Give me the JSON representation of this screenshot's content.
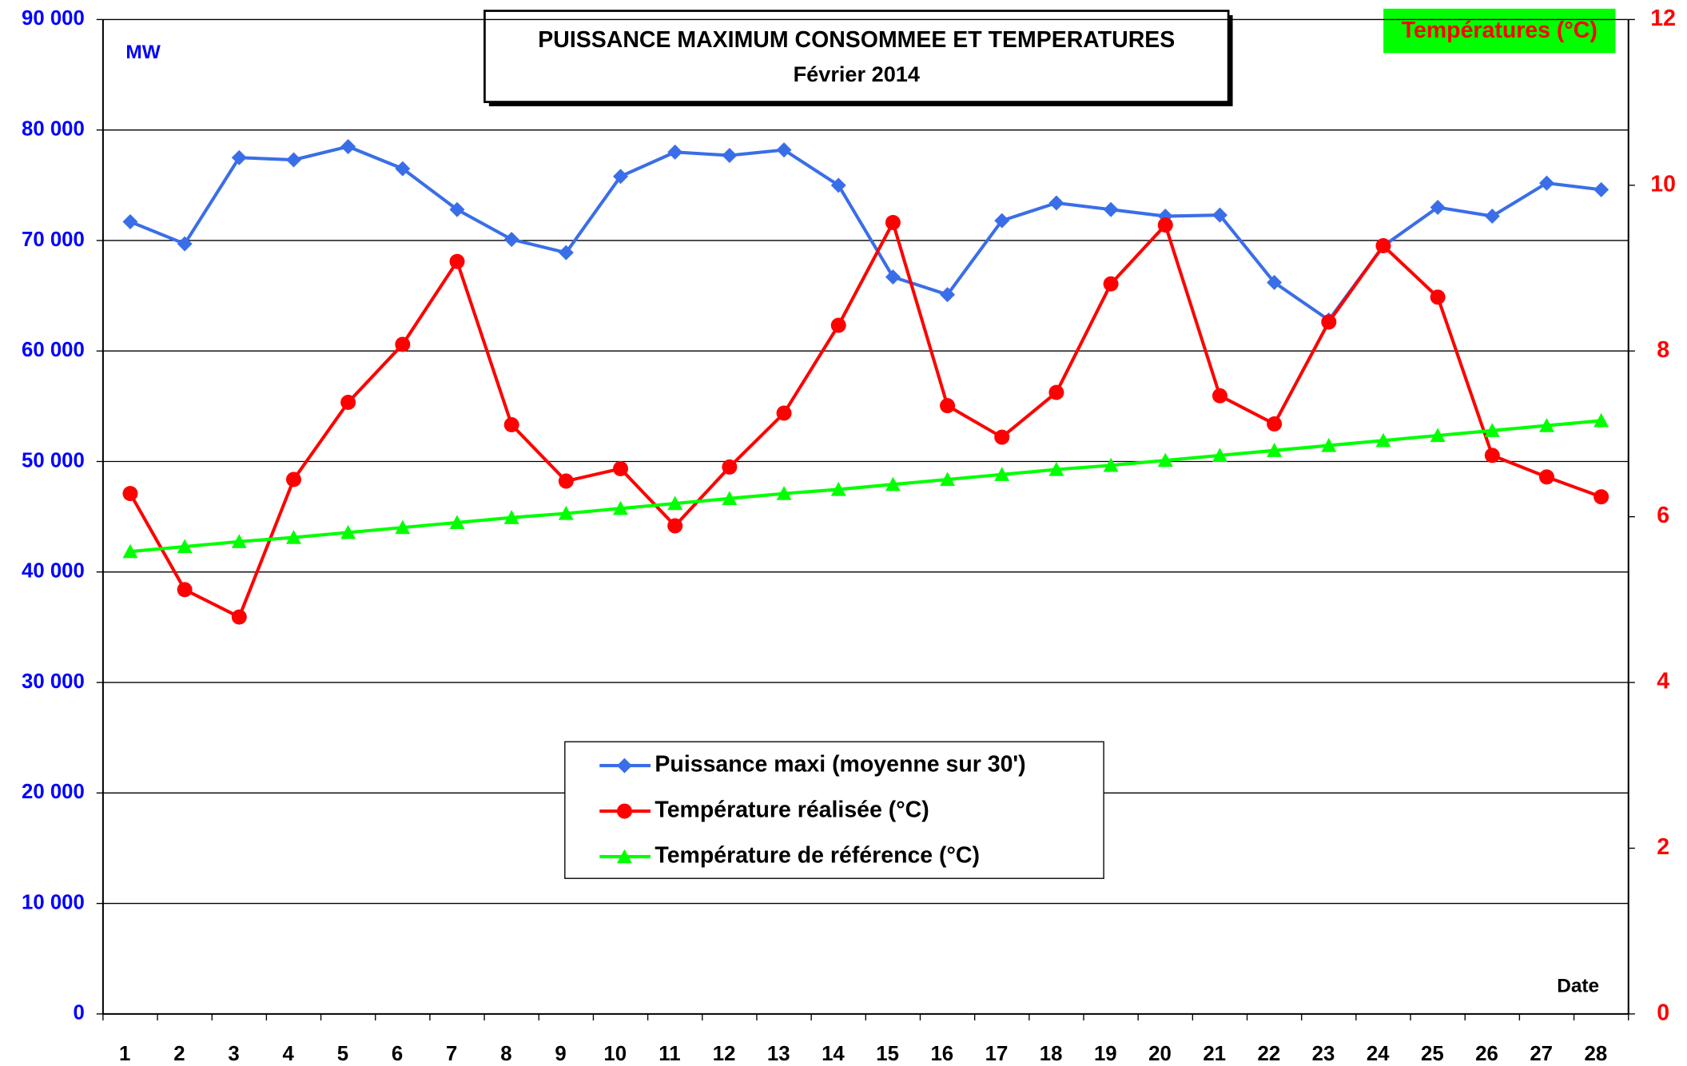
{
  "chart_data": {
    "type": "line",
    "title": "PUISSANCE  MAXIMUM CONSOMMEE ET TEMPERATURES",
    "subtitle": "Février 2014",
    "y_label": "MW",
    "y2_label": "Températures (°C)",
    "x_label": "Date",
    "categories": [
      "1",
      "2",
      "3",
      "4",
      "5",
      "6",
      "7",
      "8",
      "9",
      "10",
      "11",
      "12",
      "13",
      "14",
      "15",
      "16",
      "17",
      "18",
      "19",
      "20",
      "21",
      "22",
      "23",
      "24",
      "25",
      "26",
      "27",
      "28"
    ],
    "series": [
      {
        "name": "Puissance maxi (moyenne sur 30')",
        "color": "#3a6ee8",
        "marker": "diamond",
        "axis": "y",
        "values": [
          71700,
          69700,
          77500,
          77300,
          78500,
          76500,
          72800,
          70100,
          68900,
          75800,
          78000,
          77700,
          78200,
          75000,
          66700,
          65100,
          71800,
          73400,
          72800,
          72200,
          72300,
          66200,
          62800,
          69500,
          73000,
          72200,
          75200,
          74600
        ]
      },
      {
        "name": "Température réalisée (°C)",
        "color": "#ff0000",
        "marker": "circle",
        "axis": "y2",
        "values": [
          6.28,
          5.12,
          4.79,
          6.45,
          7.38,
          8.08,
          9.08,
          7.11,
          6.43,
          6.58,
          5.89,
          6.6,
          7.25,
          8.31,
          9.55,
          7.34,
          6.96,
          7.5,
          8.81,
          9.52,
          7.46,
          7.12,
          8.35,
          9.27,
          8.65,
          6.74,
          6.48,
          6.24
        ]
      },
      {
        "name": "Température de référence (°C)",
        "color": "#00ff00",
        "marker": "triangle",
        "axis": "y2",
        "values": [
          5.58,
          5.64,
          5.7,
          5.75,
          5.81,
          5.87,
          5.93,
          5.99,
          6.04,
          6.1,
          6.16,
          6.22,
          6.28,
          6.33,
          6.39,
          6.45,
          6.51,
          6.57,
          6.62,
          6.68,
          6.74,
          6.8,
          6.86,
          6.92,
          6.98,
          7.04,
          7.1,
          7.16
        ]
      }
    ],
    "ylim": [
      0,
      90000
    ],
    "yticks": [
      0,
      {
        "value": 10000,
        "label": "10 000"
      },
      {
        "value": 20000,
        "label": "20 000"
      },
      {
        "value": 30000,
        "label": "30 000"
      },
      {
        "value": 40000,
        "label": "40 000"
      },
      {
        "value": 50000,
        "label": "50 000"
      },
      {
        "value": 60000,
        "label": "60 000"
      },
      {
        "value": 70000,
        "label": "70 000"
      },
      {
        "value": 80000,
        "label": "80 000"
      },
      {
        "value": 90000,
        "label": "90 000"
      }
    ],
    "y2lim": [
      0,
      12
    ],
    "y2ticks": [
      0,
      2,
      4,
      6,
      8,
      10,
      12
    ],
    "grid": true
  }
}
